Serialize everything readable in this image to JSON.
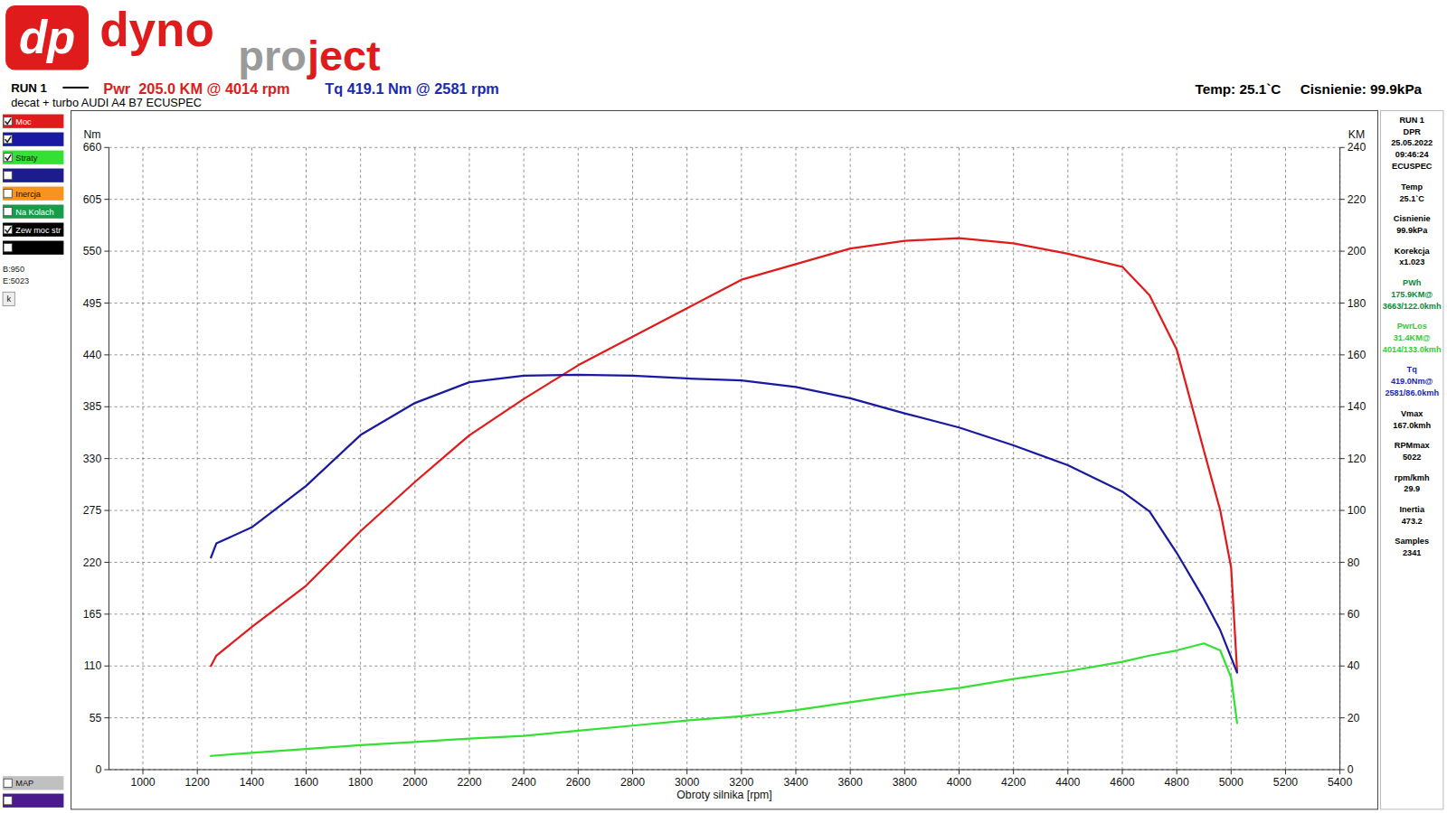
{
  "logo": {
    "mark": "dp",
    "word1": "dyno",
    "word2": "pro",
    "word3": "ject"
  },
  "header": {
    "run": "RUN 1",
    "power_summary": "Pwr  205.0 KM @ 4014 rpm",
    "torque_summary": "Tq 419.1 Nm @ 2581 rpm",
    "description": "decat + turbo AUDI A4 B7 ECUSPEC",
    "temp": "Temp: 25.1`C",
    "pressure": "Cisnienie: 99.9kPa"
  },
  "left_panel": {
    "items": [
      {
        "color": "#1c1c8c",
        "checked": false
      },
      {
        "label": "Inercja",
        "color": "#f7941d",
        "checked": false
      },
      {
        "label": "Na Kolach",
        "color": "#1a9b4a",
        "checked": false
      },
      {
        "label": "Zew moc str",
        "color": "#000000",
        "checked": true
      },
      {
        "color": "#000000",
        "checked": false
      }
    ],
    "notes": [
      "B:950",
      "E:5023"
    ],
    "button": "k",
    "bottom_items": [
      {
        "label": "MAP",
        "color": "#c0c0c0",
        "checked": false
      },
      {
        "color": "#4b1a8c",
        "checked": false
      }
    ]
  },
  "info_panel": {
    "groups": [
      {
        "color": "#000000",
        "lines": [
          "RUN 1",
          "DPR",
          "25.05.2022",
          "09:46:24",
          "ECUSPEC"
        ]
      },
      {
        "color": "#000000",
        "lines": [
          "Temp",
          "25.1`C"
        ]
      },
      {
        "color": "#000000",
        "lines": [
          "Cisnienie",
          "99.9kPa"
        ]
      },
      {
        "color": "#000000",
        "lines": [
          "Korekcja",
          "x1.023"
        ]
      },
      {
        "color": "#0a8a3a",
        "lines": [
          "PWh",
          "175.9KM@",
          "3663/122.0kmh"
        ]
      },
      {
        "color": "#33cc33",
        "lines": [
          "PwrLos",
          "31.4KM@",
          "4014/133.0kmh"
        ]
      },
      {
        "color": "#1a2ab0",
        "lines": [
          "Tq",
          "419.0Nm@",
          "2581/86.0kmh"
        ]
      },
      {
        "color": "#000000",
        "lines": [
          "Vmax",
          "167.0kmh"
        ]
      },
      {
        "color": "#000000",
        "lines": [
          "RPMmax",
          "5022"
        ]
      },
      {
        "color": "#000000",
        "lines": [
          "rpm/kmh",
          "29.9"
        ]
      },
      {
        "color": "#000000",
        "lines": [
          "Inertia",
          "473.2"
        ]
      },
      {
        "color": "#000000",
        "lines": [
          "Samples",
          "2341"
        ]
      }
    ]
  },
  "chart_data": {
    "type": "line",
    "xlabel": "Obroty silnika [rpm]",
    "ylabel": "Nm",
    "y2label": "KM",
    "x": [
      1250,
      1270,
      1400,
      1600,
      1800,
      2000,
      2200,
      2400,
      2600,
      2800,
      3000,
      3200,
      3400,
      3600,
      3800,
      4000,
      4200,
      4400,
      4600,
      4700,
      4800,
      4900,
      4960,
      5000,
      5022
    ],
    "series": [
      {
        "name": "Moc",
        "color": "#e01b1b",
        "axis": "y2",
        "values": [
          40,
          44,
          55,
          71,
          92,
          111,
          129,
          143,
          156,
          167,
          178,
          189,
          195,
          201,
          204,
          205,
          203,
          199,
          194,
          183,
          162,
          123,
          100,
          78,
          38
        ]
      },
      {
        "color": "#1a1aa0",
        "values": [
          225,
          240,
          257,
          301,
          355,
          389,
          411,
          418,
          419,
          418,
          415,
          413,
          406,
          394,
          378,
          363,
          344,
          323,
          295,
          274,
          230,
          181,
          148,
          119,
          103
        ]
      },
      {
        "name": "Straty",
        "color": "#33e033",
        "axis": "y2",
        "values": [
          5.3,
          5.5,
          6.5,
          8,
          9.5,
          10.7,
          12,
          13,
          15,
          17,
          19,
          20.6,
          23,
          26,
          29,
          31.5,
          35,
          38,
          41.6,
          44,
          46,
          48.7,
          46,
          35.5,
          18
        ]
      }
    ],
    "xlim": [
      875,
      5400
    ],
    "xticks": [
      1000,
      1200,
      1400,
      1600,
      1800,
      2000,
      2200,
      2400,
      2600,
      2800,
      3000,
      3200,
      3400,
      3600,
      3800,
      4000,
      4200,
      4400,
      4600,
      4800,
      5000,
      5200,
      5400
    ],
    "ylim": [
      0,
      660
    ],
    "yticks": [
      0,
      55,
      110,
      165,
      220,
      275,
      330,
      385,
      440,
      495,
      550,
      605,
      660
    ],
    "y2lim": [
      0,
      240
    ],
    "y2ticks": [
      0,
      20,
      40,
      60,
      80,
      100,
      120,
      140,
      160,
      180,
      200,
      220,
      240
    ],
    "grid": true,
    "legend": "left"
  }
}
